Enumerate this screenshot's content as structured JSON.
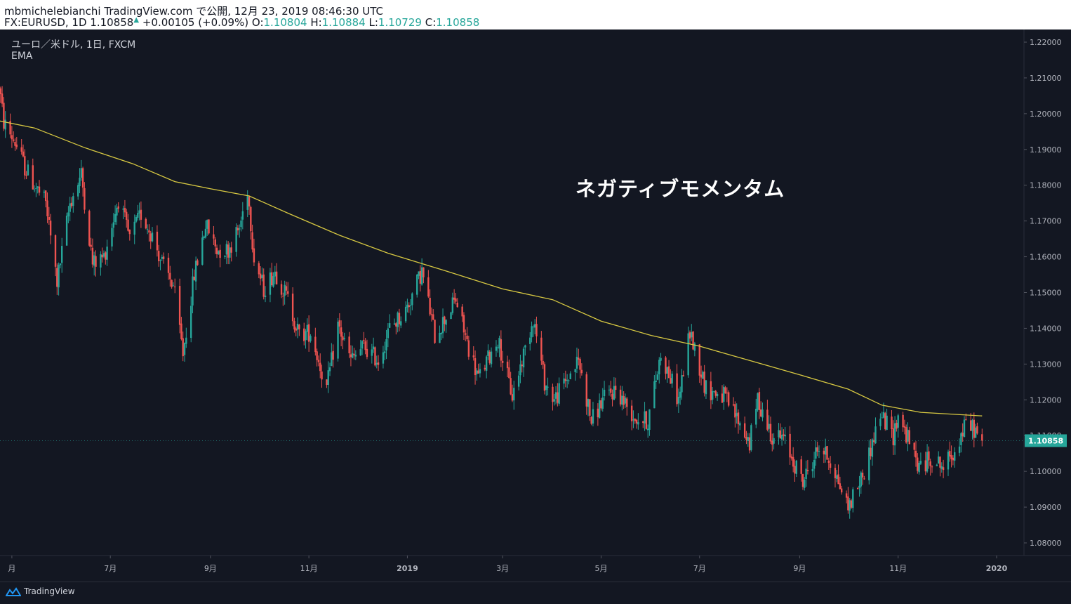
{
  "header": {
    "publisher_line": "mbmichelebianchi TradingView.com で公開, 12月 23, 2019 08:46:30 UTC",
    "symbol": "FX:EURUSD, 1D",
    "last": "1.10858",
    "change_arrow": "▲",
    "change": "+0.00105 (+0.09%)",
    "open_label": "O:",
    "open": "1.10804",
    "high_label": "H:",
    "high": "1.10884",
    "low_label": "L:",
    "low": "1.10729",
    "close_label": "C:",
    "close": "1.10858"
  },
  "legend": {
    "symbol_desc": "ユーロ／米ドル, 1日, FXCM",
    "indicator": "EMA"
  },
  "annotation": "ネガティブモメンタム",
  "footer": {
    "brand": "TradingView"
  },
  "colors": {
    "up": "#26a69a",
    "down": "#ef5350",
    "ema": "#d8c942",
    "background": "#131722",
    "price_badge": "#26a69a"
  },
  "chart_data": {
    "type": "candlestick",
    "ylim": [
      1.073,
      1.225
    ],
    "y_ticks": [
      "1.22000",
      "1.21000",
      "1.20000",
      "1.19000",
      "1.18000",
      "1.17000",
      "1.16000",
      "1.15000",
      "1.14000",
      "1.13000",
      "1.12000",
      "1.11000",
      "1.10000",
      "1.09000",
      "1.08000"
    ],
    "x_ticks": [
      {
        "label": "月",
        "date": "2018-05-01"
      },
      {
        "label": "7月",
        "date": "2018-07-01"
      },
      {
        "label": "9月",
        "date": "2018-09-01"
      },
      {
        "label": "11月",
        "date": "2018-11-01"
      },
      {
        "label": "2019",
        "date": "2019-01-01",
        "bold": true
      },
      {
        "label": "3月",
        "date": "2019-03-01"
      },
      {
        "label": "5月",
        "date": "2019-05-01"
      },
      {
        "label": "7月",
        "date": "2019-07-01"
      },
      {
        "label": "9月",
        "date": "2019-09-01"
      },
      {
        "label": "11月",
        "date": "2019-11-01"
      },
      {
        "label": "2020",
        "date": "2020-01-01",
        "bold": true
      }
    ],
    "last_price_label": "1.10858",
    "last_price": 1.10858,
    "price_path": [
      [
        "2018-04-23",
        1.208
      ],
      [
        "2018-04-26",
        1.1975
      ],
      [
        "2018-05-03",
        1.192
      ],
      [
        "2018-05-09",
        1.185
      ],
      [
        "2018-05-15",
        1.18
      ],
      [
        "2018-05-22",
        1.175
      ],
      [
        "2018-05-29",
        1.153
      ],
      [
        "2018-06-06",
        1.175
      ],
      [
        "2018-06-13",
        1.183
      ],
      [
        "2018-06-20",
        1.158
      ],
      [
        "2018-06-27",
        1.16
      ],
      [
        "2018-07-06",
        1.176
      ],
      [
        "2018-07-13",
        1.165
      ],
      [
        "2018-07-20",
        1.172
      ],
      [
        "2018-07-27",
        1.166
      ],
      [
        "2018-08-03",
        1.157
      ],
      [
        "2018-08-09",
        1.152
      ],
      [
        "2018-08-15",
        1.133
      ],
      [
        "2018-08-22",
        1.155
      ],
      [
        "2018-08-29",
        1.169
      ],
      [
        "2018-09-05",
        1.162
      ],
      [
        "2018-09-12",
        1.162
      ],
      [
        "2018-09-19",
        1.168
      ],
      [
        "2018-09-24",
        1.179
      ],
      [
        "2018-09-28",
        1.16
      ],
      [
        "2018-10-04",
        1.151
      ],
      [
        "2018-10-11",
        1.156
      ],
      [
        "2018-10-19",
        1.148
      ],
      [
        "2018-10-26",
        1.138
      ],
      [
        "2018-11-02",
        1.139
      ],
      [
        "2018-11-12",
        1.123
      ],
      [
        "2018-11-19",
        1.141
      ],
      [
        "2018-11-27",
        1.131
      ],
      [
        "2018-12-05",
        1.135
      ],
      [
        "2018-12-14",
        1.131
      ],
      [
        "2018-12-21",
        1.14
      ],
      [
        "2018-12-31",
        1.145
      ],
      [
        "2019-01-10",
        1.156
      ],
      [
        "2019-01-18",
        1.138
      ],
      [
        "2019-01-31",
        1.148
      ],
      [
        "2019-02-07",
        1.136
      ],
      [
        "2019-02-14",
        1.126
      ],
      [
        "2019-02-26",
        1.137
      ],
      [
        "2019-03-07",
        1.121
      ],
      [
        "2019-03-20",
        1.143
      ],
      [
        "2019-03-27",
        1.125
      ],
      [
        "2019-04-02",
        1.12
      ],
      [
        "2019-04-17",
        1.131
      ],
      [
        "2019-04-25",
        1.114
      ],
      [
        "2019-05-02",
        1.12
      ],
      [
        "2019-05-10",
        1.123
      ],
      [
        "2019-05-22",
        1.115
      ],
      [
        "2019-05-30",
        1.114
      ],
      [
        "2019-06-07",
        1.133
      ],
      [
        "2019-06-18",
        1.12
      ],
      [
        "2019-06-25",
        1.139
      ],
      [
        "2019-07-05",
        1.123
      ],
      [
        "2019-07-16",
        1.121
      ],
      [
        "2019-07-24",
        1.115
      ],
      [
        "2019-08-01",
        1.108
      ],
      [
        "2019-08-06",
        1.12
      ],
      [
        "2019-08-15",
        1.11
      ],
      [
        "2019-08-22",
        1.109
      ],
      [
        "2019-09-03",
        1.097
      ],
      [
        "2019-09-13",
        1.107
      ],
      [
        "2019-09-20",
        1.103
      ],
      [
        "2019-10-01",
        1.09
      ],
      [
        "2019-10-11",
        1.1
      ],
      [
        "2019-10-21",
        1.116
      ],
      [
        "2019-10-29",
        1.11
      ],
      [
        "2019-11-01",
        1.116
      ],
      [
        "2019-11-14",
        1.101
      ],
      [
        "2019-11-22",
        1.104
      ],
      [
        "2019-11-29",
        1.101
      ],
      [
        "2019-12-06",
        1.106
      ],
      [
        "2019-12-13",
        1.113
      ],
      [
        "2019-12-18",
        1.112
      ],
      [
        "2019-12-23",
        1.1086
      ]
    ],
    "ema_path": [
      [
        "2018-04-23",
        1.198
      ],
      [
        "2018-05-15",
        1.196
      ],
      [
        "2018-06-15",
        1.1905
      ],
      [
        "2018-07-15",
        1.186
      ],
      [
        "2018-08-10",
        1.181
      ],
      [
        "2018-09-01",
        1.179
      ],
      [
        "2018-09-25",
        1.177
      ],
      [
        "2018-10-20",
        1.172
      ],
      [
        "2018-11-20",
        1.166
      ],
      [
        "2018-12-20",
        1.161
      ],
      [
        "2019-01-25",
        1.156
      ],
      [
        "2019-03-01",
        1.151
      ],
      [
        "2019-04-01",
        1.148
      ],
      [
        "2019-05-01",
        1.142
      ],
      [
        "2019-06-01",
        1.138
      ],
      [
        "2019-07-01",
        1.135
      ],
      [
        "2019-08-01",
        1.131
      ],
      [
        "2019-09-01",
        1.127
      ],
      [
        "2019-10-01",
        1.123
      ],
      [
        "2019-10-22",
        1.1185
      ],
      [
        "2019-11-15",
        1.1165
      ],
      [
        "2019-12-23",
        1.1155
      ]
    ]
  }
}
